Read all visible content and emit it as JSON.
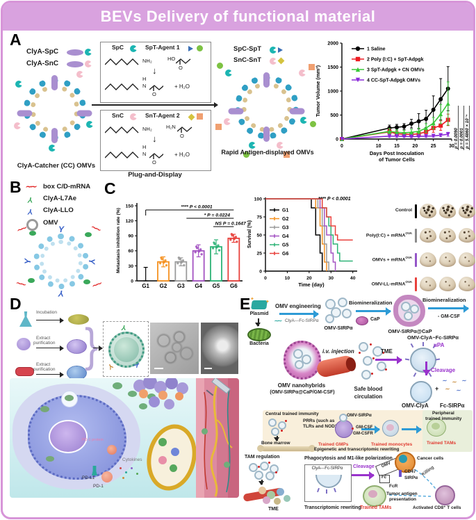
{
  "title": "BEVs Delivery of  functional material",
  "colors": {
    "frame_border": "#d795d8",
    "title_bg": "#d9a2df",
    "saline": "#000000",
    "poly_red": "#ed1c24",
    "cn_green": "#39c939",
    "cc_purple": "#8c2bd9",
    "g2_orange": "#f59120",
    "g3_gray": "#9a9a9a",
    "g4_purple": "#a352c2",
    "g5_green": "#2eb377",
    "g6_red": "#e8413c",
    "accent_purple": "#9933cc",
    "arrow_blue": "#2e9bd6",
    "trained_red": "#e03a30"
  },
  "panelA": {
    "label": "A",
    "construct1": "ClyA-SpC",
    "construct2": "ClyA-SnC",
    "cc_caption": "ClyA-Catcher (CC) OMVs",
    "box1": {
      "c": "SpC",
      "agent": "SpT-Agent 1",
      "nh2": "NH₂",
      "ho": "HO",
      "o_top": "O",
      "down": "↓",
      "h": "H",
      "n": "N",
      "o_bot": "O",
      "water": "+ H₂O"
    },
    "box2": {
      "c": "SnC",
      "agent": "SnT-Agent 2",
      "nh2": "NH₂",
      "h2n": "H₂N",
      "o_top": "O",
      "down": "↓",
      "h": "H",
      "n": "N",
      "o_bot": "O",
      "water": "+ H₂O"
    },
    "plug_display": "Plug-and-Display",
    "conj1": "SpC-SpT",
    "conj2": "SnC-SnT",
    "rapid_caption": "Rapid Antigen-displayed OMVs"
  },
  "panelB": {
    "label": "B",
    "legend": [
      {
        "name": "box C/D-mRNA"
      },
      {
        "name": "ClyA-L7Ae"
      },
      {
        "name": "ClyA-LLO"
      },
      {
        "name": "OMV"
      }
    ]
  },
  "panelC": {
    "label": "C",
    "lungs": {
      "rows": [
        {
          "label": "Control",
          "sup": "",
          "bar_color": "#000000"
        },
        {
          "label": "Poly(I:C) + mRNA",
          "sup": "OVA",
          "bar_color": "#8a8a8a"
        },
        {
          "label": "OMVs + mRNA",
          "sup": "OVA",
          "bar_color": "#9455c8"
        },
        {
          "label": "OMV-LL-mRNA",
          "sup": "OVA",
          "bar_color": "#e8413c"
        }
      ]
    }
  },
  "panelD": {
    "label": "D",
    "incubation": "Incubation",
    "extract": "Extract",
    "purification": "purification",
    "pd1_protein": "PD-1 protein",
    "cytokines": "Cytokines",
    "pdl1": "PD-L1",
    "pd1": "PD-1"
  },
  "panelE": {
    "label": "E",
    "plasmid": "Plasmid",
    "bacteria": "Bacteria",
    "omv_eng": "OMV engineering",
    "clya_fc": "ClyA---Fc-SIRPα",
    "omv_sirpa": "OMV-SIRPα",
    "biomin1": "Biomineralization",
    "cap": "CaP",
    "omv_sirpa_cap": "OMV-SIRPα@CaP",
    "biomin2": "Biomineralization",
    "gmcsf_minus": "- GM-CSF",
    "nanohybrids1": "OMV nanohybrids",
    "nanohybrids2": "(OMV-SIRPα@CaP/GM-CSF)",
    "iv": "i.v. injection",
    "safe1": "Safe blood",
    "safe2": "circulation",
    "tme1": "TME",
    "omv_clya_fc": "OMV-ClyA~Fc-SIRPα",
    "upa": "uPA",
    "cleavage1": "Cleavage",
    "omv_clya": "OMV-ClyA",
    "plus": "+",
    "fc_sirpa": "Fc-SIRPα",
    "central": "Central trained immunity",
    "prrs1": "PRRs (such as",
    "prrs2": "TLRs and NOD2)",
    "omv_sirpa2": "OMV-SIRPα",
    "gmcsf": "GM-CSF",
    "gmcsfr": "GM-CSFR",
    "bone_marrow": "Bone marrow",
    "trained_gmps": "Trained GMPs",
    "trained_monocytes": "Trained monocytes",
    "trained_tams1": "Trained TAMs",
    "peripheral1": "Peripheral",
    "peripheral2": "trained immunity",
    "epigenetic": "Epigenetic and transcriptomic rewriting",
    "tam_regulation": "TAM regulation",
    "tme2": "TME",
    "phagocytosis": "Phagocytosis and M1-like polarization",
    "clya_fc2": "ClyA---Fc-SIRPα",
    "cleavage2": "Cleavage",
    "omv_box": "OMV",
    "fc": "Fc",
    "cd47": "CD47",
    "sirpa": "SIRPα",
    "fcr": "FcR",
    "cancer_cells": "Cancer cells",
    "killing": "Killing",
    "tumor_antigen1": "Tumor antigen",
    "tumor_antigen2": "presentation",
    "trained_tams2": "Trained TAMs",
    "activated": "Activated CD8⁺ T cells",
    "transcriptomic": "Transcriptomic rewriting"
  },
  "chart_data": [
    {
      "id": "tumor_volume",
      "type": "line",
      "title": "",
      "xlabel_lines": [
        "Days Post Inoculation",
        "of Tumor Cells"
      ],
      "ylabel": "Tumor Volume (mm³)",
      "xlim": [
        0,
        31
      ],
      "ylim": [
        0,
        2000
      ],
      "xticks": [
        0,
        10,
        15,
        20,
        25,
        30
      ],
      "yticks": [
        0,
        500,
        1000,
        1500,
        2000
      ],
      "x": [
        0,
        13,
        15,
        17,
        19,
        21,
        23,
        25,
        27,
        29
      ],
      "series": [
        {
          "name": "1 Saline",
          "color": "#000000",
          "marker": "circle",
          "values": [
            0,
            230,
            245,
            260,
            320,
            370,
            420,
            610,
            830,
            1050
          ],
          "err": [
            0,
            60,
            60,
            60,
            90,
            160,
            180,
            290,
            430,
            460
          ]
        },
        {
          "name": "2 Poly (I:C) + SpT-Adpgk",
          "color": "#ed1c24",
          "marker": "square",
          "values": [
            0,
            150,
            110,
            100,
            95,
            110,
            150,
            230,
            280,
            400
          ],
          "err": [
            0,
            60,
            50,
            40,
            40,
            50,
            60,
            90,
            100,
            120
          ]
        },
        {
          "name": "3 SpT-Adpgk + CN OMVs",
          "color": "#39c939",
          "marker": "triangle",
          "values": [
            0,
            160,
            140,
            130,
            140,
            160,
            230,
            330,
            520,
            740
          ],
          "err": [
            0,
            60,
            50,
            50,
            60,
            70,
            90,
            120,
            200,
            450
          ]
        },
        {
          "name": "4 CC-SpT-Adpgk OMVs",
          "color": "#8c2bd9",
          "marker": "triangle-down",
          "values": [
            0,
            60,
            60,
            55,
            50,
            55,
            60,
            65,
            80,
            100
          ],
          "err": [
            0,
            25,
            25,
            20,
            20,
            20,
            25,
            25,
            30,
            40
          ]
        }
      ],
      "annotations": [
        "p = 0.0090",
        "p = 0.0001",
        "p = 5.4860 × 10⁻⁴"
      ],
      "legend_position": "upper-left",
      "grid": false
    },
    {
      "id": "metastasis",
      "type": "bar",
      "ylabel": "Metastasis inhibition rate (%)",
      "categories": [
        "G1",
        "G2",
        "G3",
        "G4",
        "G5",
        "G6"
      ],
      "values": [
        1,
        38,
        38,
        60,
        68,
        85
      ],
      "errors": [
        26,
        10,
        8,
        12,
        14,
        8
      ],
      "colors": [
        "#000000",
        "#f59120",
        "#9a9a9a",
        "#a352c2",
        "#2eb377",
        "#e8413c"
      ],
      "ylim": [
        0,
        150
      ],
      "yticks": [
        0,
        30,
        60,
        90,
        120,
        150
      ],
      "annotations": [
        "**** P < 0.0001",
        "* P = 0.0224",
        "NS P = 0.1647"
      ],
      "grid": false
    },
    {
      "id": "survival",
      "type": "step",
      "xlabel": "Time (day)",
      "ylabel": "Survival (%)",
      "xlim": [
        0,
        42
      ],
      "ylim": [
        0,
        100
      ],
      "xticks": [
        0,
        10,
        20,
        30,
        40
      ],
      "yticks": [
        0,
        25,
        50,
        75,
        100
      ],
      "annotation": "**** P < 0.0001",
      "series": [
        {
          "name": "G1",
          "color": "#000000",
          "points": [
            [
              0,
              100
            ],
            [
              21,
              100
            ],
            [
              21,
              87.5
            ],
            [
              23,
              87.5
            ],
            [
              23,
              50
            ],
            [
              25,
              50
            ],
            [
              25,
              25
            ],
            [
              26,
              25
            ],
            [
              26,
              0
            ]
          ]
        },
        {
          "name": "G2",
          "color": "#f59120",
          "points": [
            [
              0,
              100
            ],
            [
              23,
              100
            ],
            [
              23,
              87.5
            ],
            [
              25,
              87.5
            ],
            [
              25,
              62.5
            ],
            [
              26,
              62.5
            ],
            [
              26,
              37.5
            ],
            [
              27,
              37.5
            ],
            [
              27,
              12.5
            ],
            [
              28,
              12.5
            ],
            [
              28,
              0
            ]
          ]
        },
        {
          "name": "G3",
          "color": "#9a9a9a",
          "points": [
            [
              0,
              100
            ],
            [
              24,
              100
            ],
            [
              24,
              87.5
            ],
            [
              26,
              87.5
            ],
            [
              26,
              62.5
            ],
            [
              27,
              62.5
            ],
            [
              27,
              37.5
            ],
            [
              28,
              37.5
            ],
            [
              28,
              12.5
            ],
            [
              29,
              12.5
            ],
            [
              29,
              0
            ]
          ]
        },
        {
          "name": "G4",
          "color": "#a352c2",
          "points": [
            [
              0,
              100
            ],
            [
              25,
              100
            ],
            [
              25,
              87.5
            ],
            [
              27,
              87.5
            ],
            [
              27,
              62.5
            ],
            [
              28,
              62.5
            ],
            [
              28,
              50
            ],
            [
              30,
              50
            ],
            [
              30,
              25
            ],
            [
              31,
              25
            ],
            [
              31,
              12.5
            ],
            [
              32,
              12.5
            ],
            [
              32,
              0
            ]
          ]
        },
        {
          "name": "G5",
          "color": "#2eb377",
          "points": [
            [
              0,
              100
            ],
            [
              26,
              100
            ],
            [
              26,
              87.5
            ],
            [
              28,
              87.5
            ],
            [
              28,
              75
            ],
            [
              29,
              75
            ],
            [
              29,
              62.5
            ],
            [
              30,
              62.5
            ],
            [
              30,
              50
            ],
            [
              31,
              50
            ],
            [
              31,
              37.5
            ],
            [
              33,
              37.5
            ],
            [
              33,
              25
            ],
            [
              34,
              25
            ],
            [
              34,
              14
            ],
            [
              40,
              14
            ]
          ]
        },
        {
          "name": "G6",
          "color": "#e8413c",
          "points": [
            [
              0,
              100
            ],
            [
              26,
              100
            ],
            [
              26,
              87.5
            ],
            [
              28,
              87.5
            ],
            [
              28,
              75
            ],
            [
              30,
              75
            ],
            [
              30,
              62.5
            ],
            [
              32,
              62.5
            ],
            [
              32,
              50
            ],
            [
              33,
              50
            ],
            [
              33,
              43
            ],
            [
              40,
              43
            ]
          ]
        }
      ],
      "legend_position": "lower-left",
      "grid": false
    }
  ]
}
